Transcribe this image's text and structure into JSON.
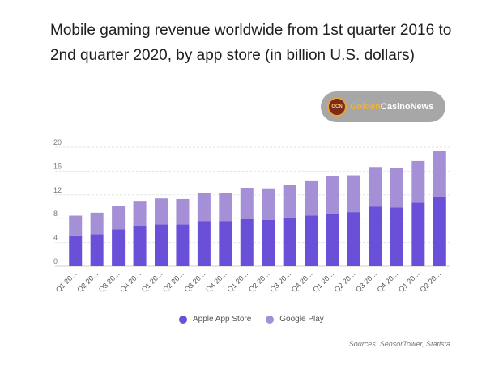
{
  "chart_data": {
    "type": "bar",
    "stacked": true,
    "title": "Mobile gaming revenue worldwide from 1st quarter 2016 to 2nd quarter 2020, by app store (in billion U.S. dollars)",
    "categories": [
      "Q1 20...",
      "Q2 20...",
      "Q3 20...",
      "Q4 20...",
      "Q1 20...",
      "Q2 20...",
      "Q3 20...",
      "Q4 20...",
      "Q1 20...",
      "Q2 20...",
      "Q3 20...",
      "Q4 20...",
      "Q1 20...",
      "Q2 20...",
      "Q3 20...",
      "Q4 20...",
      "Q1 20...",
      "Q2 20..."
    ],
    "series": [
      {
        "name": "Apple App Store",
        "color": "#6a4fd8",
        "values": [
          5.2,
          5.4,
          6.2,
          6.8,
          7.0,
          7.0,
          7.6,
          7.6,
          7.9,
          7.8,
          8.2,
          8.5,
          8.8,
          9.1,
          10.0,
          9.9,
          10.7,
          11.6
        ]
      },
      {
        "name": "Google Play",
        "color": "#a58fd6",
        "values": [
          3.3,
          3.6,
          4.0,
          4.2,
          4.4,
          4.3,
          4.7,
          4.7,
          5.3,
          5.3,
          5.5,
          5.8,
          6.3,
          6.2,
          6.7,
          6.7,
          7.0,
          7.8
        ]
      }
    ],
    "yticks": [
      0,
      4,
      8,
      12,
      16,
      20
    ],
    "ylim": [
      0,
      20
    ],
    "grid": true,
    "legend_position": "bottom",
    "source": "Sources: SensorTower, Statista"
  },
  "badge": {
    "word1": "Golden",
    "word2": "CasinoNews",
    "logo_text": "GCN"
  }
}
